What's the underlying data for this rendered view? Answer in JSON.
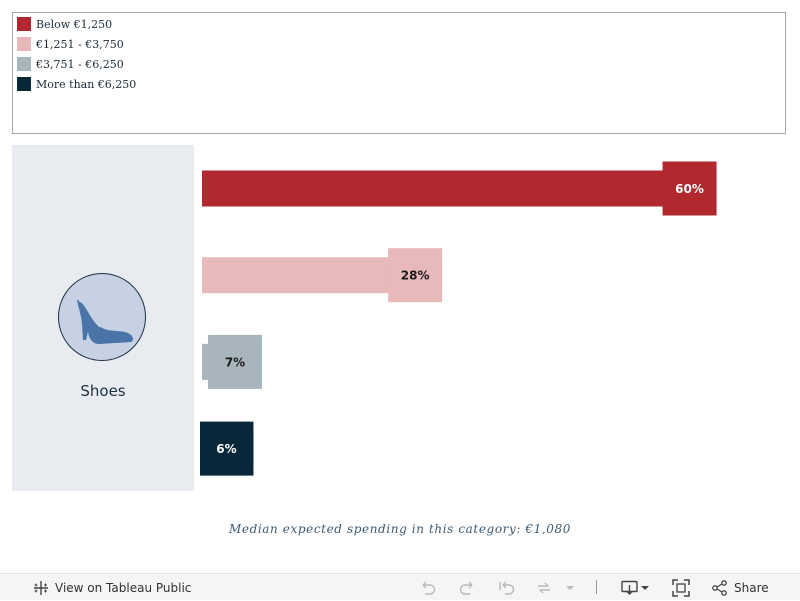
{
  "legend": {
    "items": [
      {
        "label": "Below €1,250",
        "color": "#b1282f"
      },
      {
        "label": "€1,251 - €3,750",
        "color": "#e7b9bb"
      },
      {
        "label": "€3,751 - €6,250",
        "color": "#a9b5bd"
      },
      {
        "label": "More than €6,250",
        "color": "#08283a"
      }
    ]
  },
  "category": {
    "label": "Shoes",
    "icon": "high-heel-shoe-icon"
  },
  "chart_data": {
    "type": "bar",
    "orientation": "horizontal",
    "categories": [
      "Below €1,250",
      "€1,251 - €3,750",
      "€3,751 - €6,250",
      "More than €6,250"
    ],
    "values": [
      60,
      28,
      7,
      6
    ],
    "value_labels": [
      "60%",
      "28%",
      "7%",
      "6%"
    ],
    "colors": [
      "#b1282f",
      "#e7b9bb",
      "#a9b5bd",
      "#08283a"
    ],
    "label_text_colors": [
      "#ffffff",
      "#1a1a1a",
      "#1a1a1a",
      "#ffffff"
    ],
    "xlim": [
      0,
      66
    ],
    "grid": false,
    "legend_position": "top-left"
  },
  "footnote": "Median expected spending in this category: €1,080",
  "toolbar": {
    "view_label": "View on Tableau Public",
    "share_label": "Share",
    "icons": [
      "tableau-logo-icon",
      "undo-icon",
      "redo-icon",
      "revert-icon",
      "refresh-icon",
      "dropdown-icon",
      "download-icon",
      "fullscreen-icon",
      "share-icon"
    ]
  }
}
